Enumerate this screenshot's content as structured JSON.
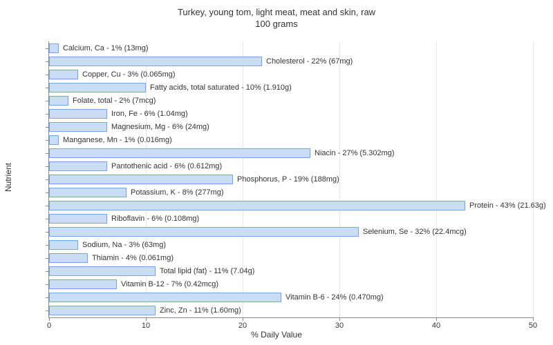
{
  "chart": {
    "type": "bar-horizontal",
    "title_line1": "Turkey, young tom, light meat, meat and skin, raw",
    "title_line2": "100 grams",
    "title_fontsize": 13,
    "x_axis_label": "% Daily Value",
    "y_axis_label": "Nutrient",
    "label_fontsize": 12,
    "xlim": [
      0,
      50
    ],
    "xtick_step": 10,
    "background_color": "#ffffff",
    "grid_color": "#e8e8e8",
    "bar_fill": "#c9ddf5",
    "bar_border": "#6fa8e8",
    "bar_label_fontsize": 11,
    "nutrients": [
      {
        "label": "Calcium, Ca - 1% (13mg)",
        "value": 1
      },
      {
        "label": "Cholesterol - 22% (67mg)",
        "value": 22
      },
      {
        "label": "Copper, Cu - 3% (0.065mg)",
        "value": 3
      },
      {
        "label": "Fatty acids, total saturated - 10% (1.910g)",
        "value": 10
      },
      {
        "label": "Folate, total - 2% (7mcg)",
        "value": 2
      },
      {
        "label": "Iron, Fe - 6% (1.04mg)",
        "value": 6
      },
      {
        "label": "Magnesium, Mg - 6% (24mg)",
        "value": 6
      },
      {
        "label": "Manganese, Mn - 1% (0.016mg)",
        "value": 1
      },
      {
        "label": "Niacin - 27% (5.302mg)",
        "value": 27
      },
      {
        "label": "Pantothenic acid - 6% (0.612mg)",
        "value": 6
      },
      {
        "label": "Phosphorus, P - 19% (188mg)",
        "value": 19
      },
      {
        "label": "Potassium, K - 8% (277mg)",
        "value": 8
      },
      {
        "label": "Protein - 43% (21.63g)",
        "value": 43
      },
      {
        "label": "Riboflavin - 6% (0.108mg)",
        "value": 6
      },
      {
        "label": "Selenium, Se - 32% (22.4mcg)",
        "value": 32
      },
      {
        "label": "Sodium, Na - 3% (63mg)",
        "value": 3
      },
      {
        "label": "Thiamin - 4% (0.061mg)",
        "value": 4
      },
      {
        "label": "Total lipid (fat) - 11% (7.04g)",
        "value": 11
      },
      {
        "label": "Vitamin B-12 - 7% (0.42mcg)",
        "value": 7
      },
      {
        "label": "Vitamin B-6 - 24% (0.470mg)",
        "value": 24
      },
      {
        "label": "Zinc, Zn - 11% (1.60mg)",
        "value": 11
      }
    ]
  }
}
